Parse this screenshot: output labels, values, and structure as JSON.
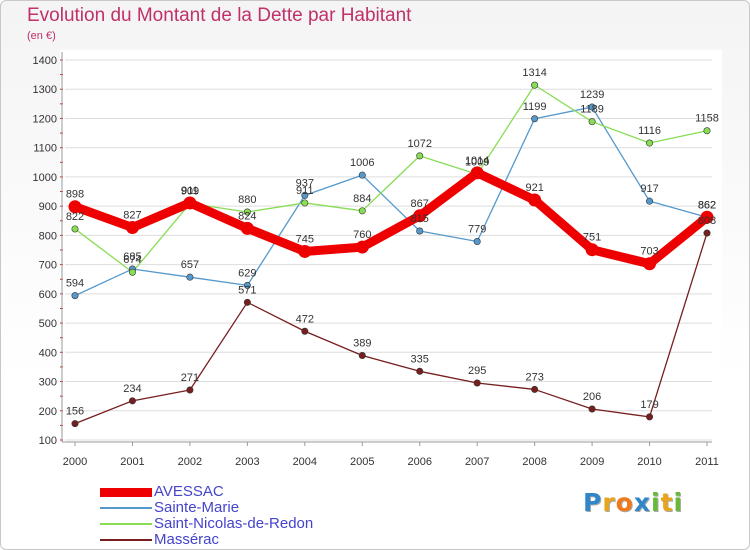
{
  "chart_data": {
    "type": "line",
    "title": "Evolution du Montant de la Dette par Habitant",
    "subtitle": "(en €)",
    "ylim": [
      100,
      1400
    ],
    "y_ticks": [
      100,
      200,
      300,
      400,
      500,
      600,
      700,
      800,
      900,
      1000,
      1100,
      1200,
      1300,
      1400
    ],
    "x": [
      "2000",
      "2001",
      "2002",
      "2003",
      "2004",
      "2005",
      "2006",
      "2007",
      "2008",
      "2009",
      "2010",
      "2011"
    ],
    "grid": true,
    "legend_position": "bottom-left",
    "series": [
      {
        "name": "AVESSAC",
        "color": "#ee0000",
        "values": [
          898,
          827,
          911,
          824,
          745,
          760,
          867,
          1014,
          921,
          751,
          703,
          862
        ]
      },
      {
        "name": "Sainte-Marie",
        "color": "#5599cc",
        "values": [
          594,
          685,
          657,
          629,
          937,
          1006,
          815,
          779,
          1199,
          1239,
          917,
          862
        ]
      },
      {
        "name": "Saint-Nicolas-de-Redon",
        "color": "#88dd55",
        "values": [
          822,
          674,
          909,
          880,
          911,
          884,
          1072,
          1009,
          1314,
          1189,
          1116,
          1158
        ]
      },
      {
        "name": "Massérac",
        "color": "#771e1e",
        "values": [
          156,
          234,
          271,
          571,
          472,
          389,
          335,
          295,
          273,
          206,
          179,
          808
        ]
      }
    ]
  },
  "logo": {
    "letters": [
      "P",
      "r",
      "o",
      "x",
      "i",
      "t",
      "i"
    ],
    "colors": [
      "#2f86c8",
      "#e8a41a",
      "#f07818",
      "#2f86c8",
      "#68b83a",
      "#e8a41a",
      "#68b83a"
    ]
  }
}
